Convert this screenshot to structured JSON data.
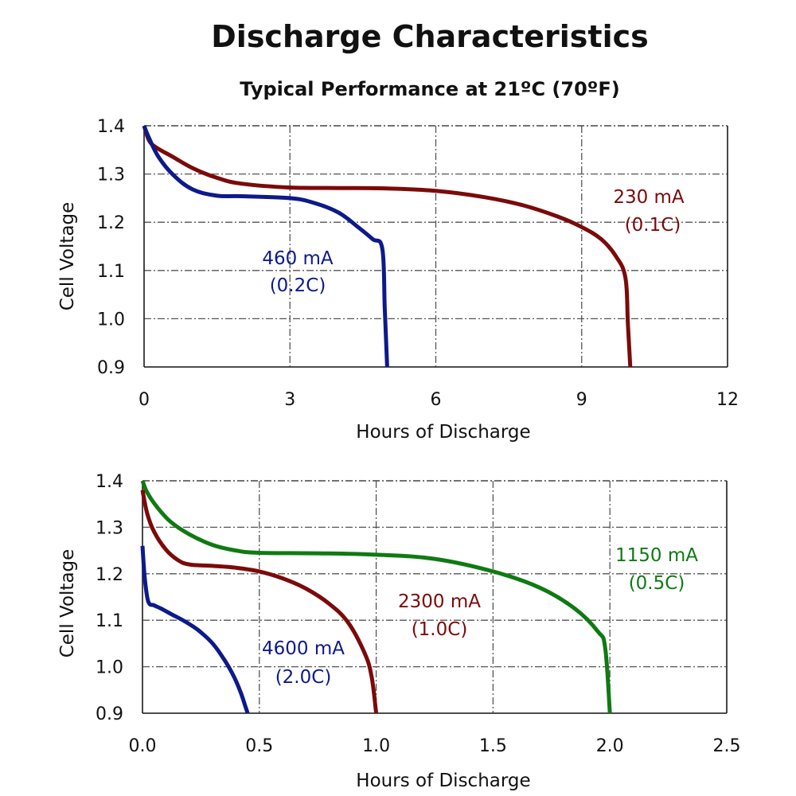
{
  "title": "Discharge Characteristics",
  "subtitle": "Typical Performance at 21ºC (70ºF)",
  "chart_data": [
    {
      "type": "line",
      "xlabel": "Hours of Discharge",
      "ylabel": "Cell Voltage",
      "xlim": [
        0,
        12
      ],
      "ylim": [
        0.9,
        1.4
      ],
      "xticks": [
        "0",
        "3",
        "6",
        "9",
        "12"
      ],
      "xtick_values": [
        0,
        3,
        6,
        9,
        12
      ],
      "yticks": [
        "0.9",
        "1.0",
        "1.1",
        "1.2",
        "1.3",
        "1.4"
      ],
      "ytick_values": [
        0.9,
        1.0,
        1.1,
        1.2,
        1.3,
        1.4
      ],
      "grid": true,
      "series": [
        {
          "name": "230 mA (0.1C)",
          "label_line1": "230 mA",
          "label_line2": "(0.1C)",
          "color": "#7b0a0a",
          "x": [
            0,
            0.1,
            0.25,
            0.6,
            1.0,
            1.5,
            2.0,
            3.0,
            4.0,
            5.0,
            6.0,
            7.0,
            7.8,
            8.5,
            9.0,
            9.4,
            9.7,
            9.9,
            9.95,
            10.0
          ],
          "y": [
            1.4,
            1.37,
            1.355,
            1.335,
            1.312,
            1.292,
            1.28,
            1.272,
            1.271,
            1.27,
            1.265,
            1.252,
            1.235,
            1.212,
            1.19,
            1.165,
            1.13,
            1.085,
            0.99,
            0.9
          ]
        },
        {
          "name": "460 mA (0.2C)",
          "label_line1": "460 mA",
          "label_line2": "(0.2C)",
          "color": "#0d1a8a",
          "x": [
            0,
            0.1,
            0.3,
            0.6,
            1.0,
            1.5,
            2.0,
            3.0,
            3.5,
            4.0,
            4.4,
            4.7,
            4.9,
            4.95,
            5.0
          ],
          "y": [
            1.4,
            1.375,
            1.335,
            1.298,
            1.268,
            1.255,
            1.254,
            1.25,
            1.24,
            1.22,
            1.19,
            1.165,
            1.145,
            1.02,
            0.9
          ]
        }
      ]
    },
    {
      "type": "line",
      "xlabel": "Hours of Discharge",
      "ylabel": "Cell Voltage",
      "xlim": [
        0,
        2.5
      ],
      "ylim": [
        0.9,
        1.4
      ],
      "xticks": [
        "0.0",
        "0.5",
        "1.0",
        "1.5",
        "2.0",
        "2.5"
      ],
      "xtick_values": [
        0,
        0.5,
        1.0,
        1.5,
        2.0,
        2.5
      ],
      "yticks": [
        "0.9",
        "1.0",
        "1.1",
        "1.2",
        "1.3",
        "1.4"
      ],
      "ytick_values": [
        0.9,
        1.0,
        1.1,
        1.2,
        1.3,
        1.4
      ],
      "grid": true,
      "series": [
        {
          "name": "1150 mA (0.5C)",
          "label_line1": "1150 mA",
          "label_line2": "(0.5C)",
          "color": "#0f7a12",
          "x": [
            0,
            0.02,
            0.06,
            0.12,
            0.2,
            0.3,
            0.4,
            0.5,
            0.75,
            1.0,
            1.25,
            1.5,
            1.7,
            1.85,
            1.95,
            1.98,
            2.0
          ],
          "y": [
            1.4,
            1.375,
            1.345,
            1.312,
            1.285,
            1.262,
            1.25,
            1.245,
            1.244,
            1.241,
            1.232,
            1.205,
            1.17,
            1.125,
            1.075,
            1.04,
            0.9
          ]
        },
        {
          "name": "2300 mA (1.0C)",
          "label_line1": "2300 mA",
          "label_line2": "(1.0C)",
          "color": "#7b0a0a",
          "x": [
            0,
            0.02,
            0.05,
            0.1,
            0.15,
            0.2,
            0.3,
            0.4,
            0.5,
            0.6,
            0.7,
            0.8,
            0.88,
            0.95,
            0.98,
            1.0
          ],
          "y": [
            1.38,
            1.33,
            1.29,
            1.252,
            1.23,
            1.22,
            1.217,
            1.213,
            1.205,
            1.19,
            1.168,
            1.135,
            1.095,
            1.03,
            0.98,
            0.9
          ]
        },
        {
          "name": "4600 mA (2.0C)",
          "label_line1": "4600 mA",
          "label_line2": "(2.0C)",
          "color": "#0d1a8a",
          "x": [
            0,
            0.01,
            0.025,
            0.05,
            0.08,
            0.12,
            0.18,
            0.24,
            0.3,
            0.35,
            0.39,
            0.42,
            0.44,
            0.45
          ],
          "y": [
            1.26,
            1.19,
            1.14,
            1.132,
            1.125,
            1.114,
            1.098,
            1.078,
            1.05,
            1.015,
            0.98,
            0.945,
            0.915,
            0.9
          ]
        }
      ]
    }
  ]
}
